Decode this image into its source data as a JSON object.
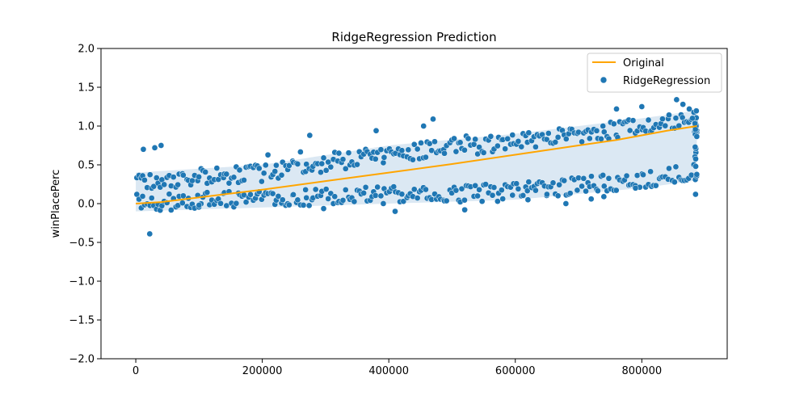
{
  "chart_data": {
    "type": "scatter",
    "title": "RidgeRegression Prediction",
    "xlabel": "",
    "ylabel": "winPlacePerc",
    "xlim": [
      -55000,
      935000
    ],
    "ylim": [
      -2.0,
      2.0
    ],
    "x_ticks": [
      0,
      200000,
      400000,
      600000,
      800000
    ],
    "y_ticks": [
      -2.0,
      -1.5,
      -1.0,
      -0.5,
      0.0,
      0.5,
      1.0,
      1.5,
      2.0
    ],
    "x_tick_labels": [
      "0",
      "200000",
      "400000",
      "600000",
      "800000"
    ],
    "y_tick_labels": [
      "−2.0",
      "−1.5",
      "−1.0",
      "−0.5",
      "0.0",
      "0.5",
      "1.0",
      "1.5",
      "2.0"
    ],
    "grid": false,
    "legend_position": "top-right",
    "x_max": 887000,
    "series": [
      {
        "name": "Original",
        "kind": "line",
        "color": "#FFA500",
        "x": [
          0,
          40000,
          80000,
          120000,
          200000,
          300000,
          400000,
          500000,
          600000,
          700000,
          760000,
          800000,
          840000,
          887000
        ],
        "y": [
          0.0,
          0.02,
          0.06,
          0.1,
          0.18,
          0.29,
          0.4,
          0.51,
          0.63,
          0.75,
          0.82,
          0.88,
          0.94,
          1.0
        ]
      },
      {
        "name": "RidgeRegression",
        "kind": "scatter",
        "color": "#1F77B4",
        "band": {
          "lower": {
            "x": [
              0,
              200000,
              400000,
              600000,
              800000,
              887000
            ],
            "y": [
              -0.1,
              -0.05,
              0.0,
              0.05,
              0.2,
              0.3
            ]
          },
          "upper": {
            "x": [
              0,
              200000,
              400000,
              600000,
              800000,
              887000
            ],
            "y": [
              0.4,
              0.5,
              0.75,
              0.9,
              1.1,
              1.2
            ]
          }
        },
        "outliers": {
          "x": [
            22000,
            470000,
            455000,
            855000,
            865000,
            885000,
            875000,
            880000,
            760000,
            800000,
            740000,
            12000,
            30000,
            40000,
            380000,
            275000,
            100000,
            410000,
            520000,
            680000,
            720000,
            790000,
            620000,
            650000
          ],
          "y": [
            -0.39,
            1.09,
            1.0,
            1.34,
            1.28,
            0.12,
            1.22,
            1.1,
            1.22,
            1.25,
            0.09,
            0.7,
            0.72,
            0.75,
            0.94,
            0.88,
            -0.02,
            -0.1,
            -0.08,
            0.0,
            0.06,
            0.2,
            0.05,
            0.12
          ]
        }
      }
    ]
  }
}
